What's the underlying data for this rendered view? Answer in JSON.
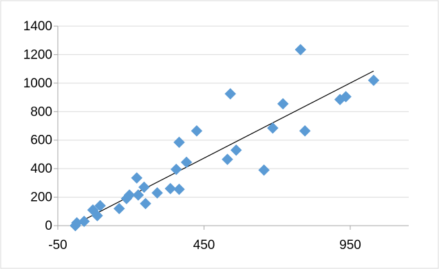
{
  "chart_data": {
    "type": "scatter",
    "title": "",
    "xlabel": "",
    "ylabel": "",
    "xlim": [
      -50,
      1150
    ],
    "ylim": [
      0,
      1400
    ],
    "x_ticks": [
      -50,
      450,
      950
    ],
    "y_ticks": [
      0,
      200,
      400,
      600,
      800,
      1000,
      1200,
      1400
    ],
    "grid": {
      "horizontal": true,
      "vertical": false
    },
    "legend": "none",
    "series": [
      {
        "marker": "diamond",
        "color": "#5B9BD5",
        "points": [
          [
            10,
            0
          ],
          [
            15,
            20
          ],
          [
            40,
            30
          ],
          [
            70,
            110
          ],
          [
            85,
            70
          ],
          [
            95,
            140
          ],
          [
            160,
            120
          ],
          [
            185,
            190
          ],
          [
            195,
            215
          ],
          [
            220,
            335
          ],
          [
            225,
            215
          ],
          [
            245,
            270
          ],
          [
            250,
            155
          ],
          [
            290,
            230
          ],
          [
            335,
            260
          ],
          [
            355,
            395
          ],
          [
            365,
            585
          ],
          [
            365,
            255
          ],
          [
            390,
            445
          ],
          [
            425,
            665
          ],
          [
            530,
            465
          ],
          [
            540,
            925
          ],
          [
            560,
            530
          ],
          [
            655,
            390
          ],
          [
            685,
            685
          ],
          [
            720,
            855
          ],
          [
            780,
            1235
          ],
          [
            795,
            665
          ],
          [
            915,
            885
          ],
          [
            935,
            905
          ],
          [
            1030,
            1020
          ]
        ]
      }
    ],
    "trendline": {
      "type": "linear",
      "from": [
        10,
        10
      ],
      "to": [
        1030,
        1085
      ],
      "color": "#000000"
    }
  }
}
